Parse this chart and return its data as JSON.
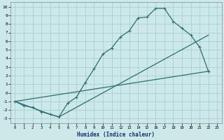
{
  "xlabel": "Humidex (Indice chaleur)",
  "bg_color": "#cce8e8",
  "grid_color": "#aacfcf",
  "line_color": "#2d6e6e",
  "xlim": [
    -0.5,
    23.5
  ],
  "ylim": [
    -3.5,
    10.5
  ],
  "xticks": [
    0,
    1,
    2,
    3,
    4,
    5,
    6,
    7,
    8,
    9,
    10,
    11,
    12,
    13,
    14,
    15,
    16,
    17,
    18,
    19,
    20,
    21,
    22,
    23
  ],
  "yticks": [
    -3,
    -2,
    -1,
    0,
    1,
    2,
    3,
    4,
    5,
    6,
    7,
    8,
    9,
    10
  ],
  "line1_x": [
    0,
    1,
    2,
    3,
    4,
    5,
    6,
    7,
    8,
    9,
    10,
    11,
    12,
    13,
    14,
    15,
    16,
    17,
    18,
    19,
    20,
    21,
    22
  ],
  "line1_y": [
    -1.0,
    -1.5,
    -1.7,
    -2.2,
    -2.5,
    -2.8,
    -1.2,
    -0.5,
    1.2,
    2.8,
    4.5,
    5.2,
    6.5,
    7.2,
    8.7,
    8.8,
    9.8,
    9.8,
    8.3,
    7.5,
    6.7,
    5.3,
    2.5
  ],
  "line2_x": [
    0,
    22
  ],
  "line2_y": [
    -1.0,
    2.5
  ],
  "line3_x": [
    0,
    4,
    5,
    22
  ],
  "line3_y": [
    -1.0,
    -2.5,
    -2.8,
    6.7
  ]
}
